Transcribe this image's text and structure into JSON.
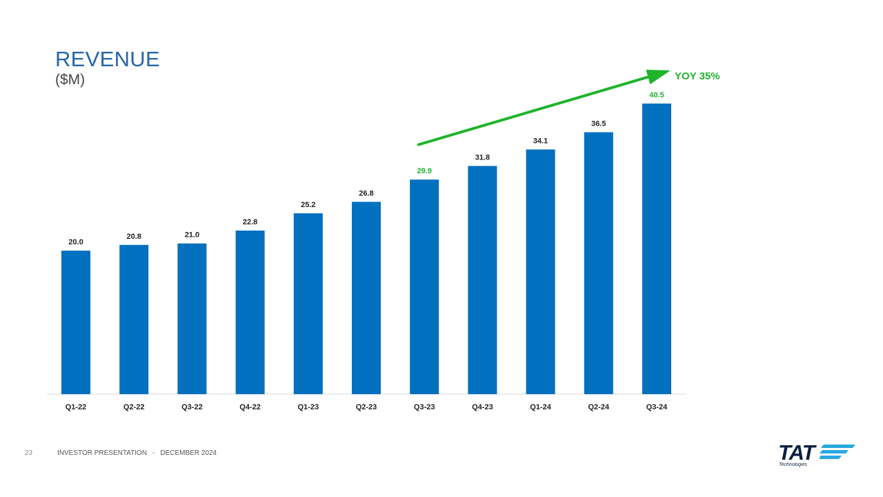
{
  "header": {
    "title": "REVENUE",
    "subtitle": "($M)"
  },
  "chart_data": {
    "type": "bar",
    "categories": [
      "Q1-22",
      "Q2-22",
      "Q3-22",
      "Q4-22",
      "Q1-23",
      "Q2-23",
      "Q3-23",
      "Q4-23",
      "Q1-24",
      "Q2-24",
      "Q3-24"
    ],
    "values": [
      20.0,
      20.8,
      21.0,
      22.8,
      25.2,
      26.8,
      29.9,
      31.8,
      34.1,
      36.5,
      40.5
    ],
    "value_labels": [
      "20.0",
      "20.8",
      "21.0",
      "22.8",
      "25.2",
      "26.8",
      "29.9",
      "31.8",
      "34.1",
      "36.5",
      "40.5"
    ],
    "highlighted_labels": [
      "Q3-23",
      "Q3-24"
    ],
    "annotation": {
      "text": "YOY 35%",
      "from": "Q3-23",
      "to": "Q3-24"
    },
    "ylim": [
      0,
      40.5
    ],
    "title": "REVENUE",
    "ylabel": "($M)",
    "xlabel": "",
    "grid": false,
    "colors": {
      "bar": "#0070bf",
      "highlight": "#1eb42c",
      "label": "#222222",
      "axis": "#d9d9d9"
    }
  },
  "footer": {
    "page_number": "23",
    "doc_title": "INVESTOR PRESENTATION",
    "separator": "-",
    "date": "DECEMBER 2024"
  },
  "logo": {
    "wordmark": "TAT",
    "tagline": "Technologies",
    "stripe_color": "#29a8e0"
  }
}
